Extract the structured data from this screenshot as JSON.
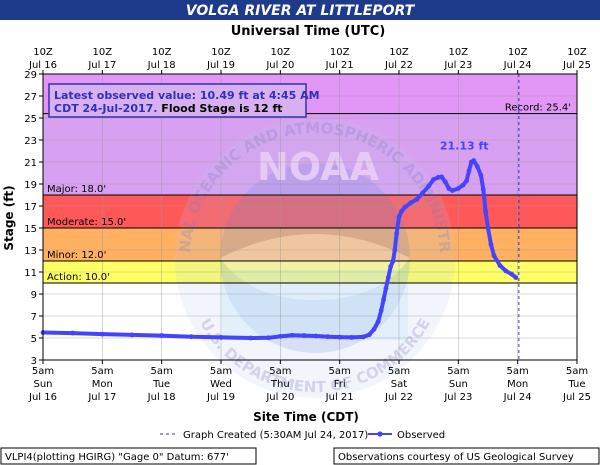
{
  "header": {
    "title": "VOLGA RIVER AT LITTLEPORT",
    "subtitle": "Universal Time (UTC)"
  },
  "info_box": {
    "line1": "Latest observed value: 10.49 ft at 4:45 AM",
    "line2_a": "CDT 24-Jul-2017.",
    "line2_b": " Flood Stage is 12 ft"
  },
  "watermark": {
    "logo_text": "NOAA",
    "ring_top": "NATIONAL OCEANIC AND ATMOSPHERIC ADMINISTRATION",
    "ring_bottom": "U.S. DEPARTMENT OF COMMERCE"
  },
  "footer": {
    "left": "VLPI4(plotting HGIRG) \"Gage 0\" Datum: 677'",
    "right": "Observations courtesy of US Geological Survey"
  },
  "colors": {
    "title_bg": "#1e3a8a",
    "major": "#d8a0f0",
    "record_band": "#e296f6",
    "moderate_band": "#ff5858",
    "minor_band": "#ffb060",
    "action_band": "#ffff66",
    "observed": "#4444ff",
    "frame": "#000000"
  },
  "chart_data": {
    "type": "line",
    "ylabel": "Stage (ft)",
    "xlabel": "Site Time (CDT)",
    "ylim": [
      3,
      29
    ],
    "yticks": [
      3,
      5,
      7,
      9,
      11,
      13,
      15,
      17,
      19,
      21,
      23,
      25,
      27,
      29
    ],
    "grid": true,
    "x_axis_units": "days from 5am Jul 16 CDT",
    "xlim": [
      0,
      9
    ],
    "top_ticks": [
      {
        "time": "10Z",
        "date": "Jul 16"
      },
      {
        "time": "10Z",
        "date": "Jul 17"
      },
      {
        "time": "10Z",
        "date": "Jul 18"
      },
      {
        "time": "10Z",
        "date": "Jul 19"
      },
      {
        "time": "10Z",
        "date": "Jul 20"
      },
      {
        "time": "10Z",
        "date": "Jul 21"
      },
      {
        "time": "10Z",
        "date": "Jul 22"
      },
      {
        "time": "10Z",
        "date": "Jul 23"
      },
      {
        "time": "10Z",
        "date": "Jul 24"
      },
      {
        "time": "10Z",
        "date": "Jul 25"
      }
    ],
    "bottom_ticks": [
      {
        "time": "5am",
        "day": "Sun",
        "date": "Jul 16"
      },
      {
        "time": "5am",
        "day": "Mon",
        "date": "Jul 17"
      },
      {
        "time": "5am",
        "day": "Tue",
        "date": "Jul 18"
      },
      {
        "time": "5am",
        "day": "Wed",
        "date": "Jul 19"
      },
      {
        "time": "5am",
        "day": "Thu",
        "date": "Jul 20"
      },
      {
        "time": "5am",
        "day": "Fri",
        "date": "Jul 21"
      },
      {
        "time": "5am",
        "day": "Sat",
        "date": "Jul 22"
      },
      {
        "time": "5am",
        "day": "Sun",
        "date": "Jul 23"
      },
      {
        "time": "5am",
        "day": "Mon",
        "date": "Jul 24"
      },
      {
        "time": "5am",
        "day": "Tue",
        "date": "Jul 25"
      }
    ],
    "bands": [
      {
        "name": "Record",
        "from": 25.4,
        "to": 29,
        "color": "#e296f6"
      },
      {
        "name": "Major",
        "from": 18,
        "to": 25.4,
        "color": "#d8a0f0"
      },
      {
        "name": "Moderate",
        "from": 15,
        "to": 18,
        "color": "#ff5858"
      },
      {
        "name": "Minor",
        "from": 12,
        "to": 15,
        "color": "#ffb060"
      },
      {
        "name": "Action",
        "from": 10,
        "to": 12,
        "color": "#ffff66"
      }
    ],
    "thresholds": [
      {
        "label": "Record: 25.4'",
        "value": 25.4,
        "side": "right"
      },
      {
        "label": "Major: 18.0'",
        "value": 18.0,
        "side": "left"
      },
      {
        "label": "Moderate: 15.0'",
        "value": 15.0,
        "side": "left"
      },
      {
        "label": "Minor: 12.0'",
        "value": 12.0,
        "side": "left"
      },
      {
        "label": "Action: 10.0'",
        "value": 10.0,
        "side": "left"
      }
    ],
    "graph_created_x": 8.02,
    "peak_label": "21.13 ft",
    "peak": {
      "x": 7.2,
      "y": 21.13
    },
    "series": [
      {
        "name": "Observed",
        "color": "#4444ff",
        "points": [
          [
            0.0,
            5.5
          ],
          [
            0.5,
            5.45
          ],
          [
            1.0,
            5.35
          ],
          [
            1.5,
            5.28
          ],
          [
            2.0,
            5.22
          ],
          [
            2.5,
            5.12
          ],
          [
            3.0,
            5.05
          ],
          [
            3.5,
            5.0
          ],
          [
            3.8,
            5.02
          ],
          [
            4.0,
            5.15
          ],
          [
            4.2,
            5.25
          ],
          [
            4.4,
            5.22
          ],
          [
            4.6,
            5.18
          ],
          [
            4.8,
            5.12
          ],
          [
            5.0,
            5.08
          ],
          [
            5.2,
            5.05
          ],
          [
            5.4,
            5.1
          ],
          [
            5.5,
            5.3
          ],
          [
            5.58,
            5.8
          ],
          [
            5.65,
            6.5
          ],
          [
            5.7,
            7.5
          ],
          [
            5.74,
            8.5
          ],
          [
            5.78,
            9.5
          ],
          [
            5.82,
            10.5
          ],
          [
            5.86,
            11.5
          ],
          [
            5.9,
            12.0
          ],
          [
            5.93,
            13.0
          ],
          [
            5.96,
            14.5
          ],
          [
            6.0,
            16.0
          ],
          [
            6.04,
            16.5
          ],
          [
            6.1,
            16.9
          ],
          [
            6.2,
            17.3
          ],
          [
            6.3,
            17.6
          ],
          [
            6.4,
            18.2
          ],
          [
            6.5,
            18.8
          ],
          [
            6.58,
            19.4
          ],
          [
            6.66,
            19.6
          ],
          [
            6.72,
            19.65
          ],
          [
            6.78,
            19.2
          ],
          [
            6.84,
            18.6
          ],
          [
            6.9,
            18.4
          ],
          [
            7.0,
            18.6
          ],
          [
            7.08,
            18.9
          ],
          [
            7.14,
            19.3
          ],
          [
            7.18,
            20.2
          ],
          [
            7.22,
            21.0
          ],
          [
            7.26,
            21.13
          ],
          [
            7.32,
            20.6
          ],
          [
            7.38,
            19.8
          ],
          [
            7.42,
            18.5
          ],
          [
            7.46,
            16.5
          ],
          [
            7.5,
            15.0
          ],
          [
            7.55,
            13.5
          ],
          [
            7.6,
            12.5
          ],
          [
            7.7,
            11.6
          ],
          [
            7.8,
            11.1
          ],
          [
            7.9,
            10.8
          ],
          [
            7.97,
            10.49
          ]
        ]
      }
    ],
    "legend": [
      {
        "label": "Graph Created (5:30AM Jul 24, 2017)",
        "style": "dashed"
      },
      {
        "label": "Observed",
        "style": "line-marker"
      }
    ]
  }
}
